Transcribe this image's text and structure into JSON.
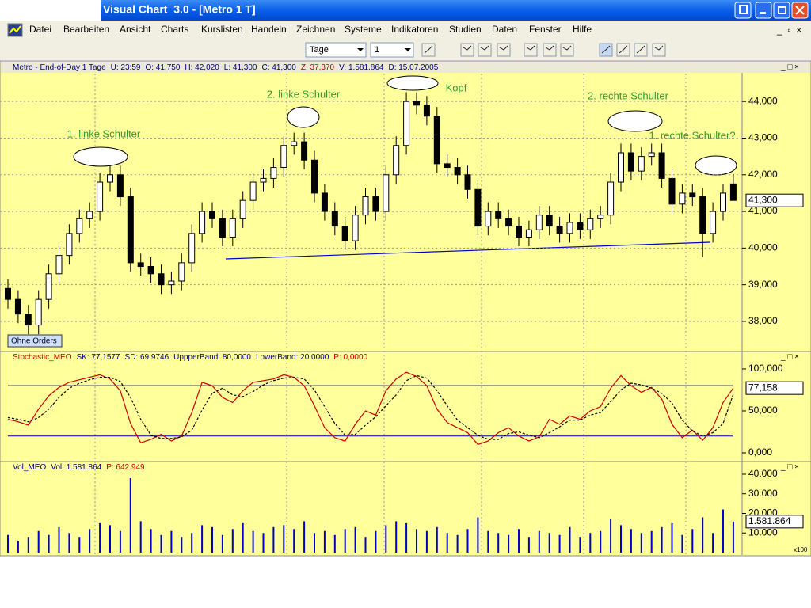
{
  "window": {
    "title": "Visual Chart  3.0 - [Metro 1 T]"
  },
  "menu": [
    "Datei",
    "Bearbeiten",
    "Ansicht",
    "Charts",
    "Kurslisten",
    "Handeln",
    "Zeichnen",
    "Systeme",
    "Indikatoren",
    "Studien",
    "Daten",
    "Fenster",
    "Hilfe"
  ],
  "toolbar": {
    "period": "Tage",
    "count": "1"
  },
  "chart_data": [
    {
      "type": "candlestick",
      "header": [
        {
          "text": "Metro - End-of-Day 1 Tage",
          "color": "#000080"
        },
        {
          "text": "U: 23:59",
          "color": "#000080"
        },
        {
          "text": "O: 41,750",
          "color": "#000080"
        },
        {
          "text": "H: 42,020",
          "color": "#000080"
        },
        {
          "text": "L: 41,300",
          "color": "#000080"
        },
        {
          "text": "C: 41,300",
          "color": "#000080"
        },
        {
          "text": "Z: 37,370",
          "color": "#cc0000"
        },
        {
          "text": "V: 1.581.864",
          "color": "#000080"
        },
        {
          "text": "D: 15.07.2005",
          "color": "#000080"
        }
      ],
      "annotations": [
        "1. linke Schulter",
        "2. linke Schulter",
        "Kopf",
        "2. rechte Schulter",
        "1. rechte Schulter?"
      ],
      "button": "Ohne Orders",
      "last_label": "41,300",
      "ylim": [
        37.2,
        44.76
      ],
      "yticks": [
        {
          "value": 38,
          "label": "38,000"
        },
        {
          "value": 39,
          "label": "39,000"
        },
        {
          "value": 40,
          "label": "40,000"
        },
        {
          "value": 41,
          "label": "41,000"
        },
        {
          "value": 42,
          "label": "42,000"
        },
        {
          "value": 43,
          "label": "43,000"
        },
        {
          "value": 44,
          "label": "44,000"
        }
      ],
      "grid": true,
      "open": [
        38.9,
        38.6,
        38.2,
        37.9,
        38.6,
        39.3,
        39.8,
        40.4,
        40.8,
        41.0,
        41.8,
        42.0,
        41.4,
        39.6,
        39.5,
        39.3,
        39.0,
        39.1,
        39.6,
        40.4,
        41.0,
        40.8,
        40.3,
        40.8,
        41.3,
        41.8,
        41.9,
        42.2,
        42.8,
        42.9,
        42.4,
        41.5,
        41.0,
        40.6,
        40.2,
        40.9,
        41.4,
        41.0,
        42.0,
        42.8,
        44.0,
        43.9,
        43.6,
        42.3,
        42.2,
        42.0,
        41.6,
        40.6,
        41.0,
        40.8,
        40.6,
        40.3,
        40.5,
        40.9,
        40.6,
        40.4,
        40.7,
        40.5,
        40.8,
        40.9,
        41.8,
        42.6,
        42.1,
        42.5,
        42.6,
        41.9,
        41.2,
        41.5,
        41.4,
        40.4,
        41.0,
        41.75
      ],
      "high": [
        39.15,
        38.85,
        38.45,
        38.85,
        39.55,
        40.05,
        40.65,
        41.05,
        41.25,
        42.05,
        42.25,
        42.25,
        41.65,
        39.85,
        39.75,
        39.55,
        39.35,
        39.85,
        40.65,
        41.25,
        41.25,
        41.05,
        41.05,
        41.55,
        42.05,
        42.15,
        42.45,
        43.05,
        43.15,
        43.15,
        42.65,
        41.75,
        41.25,
        40.85,
        41.15,
        41.65,
        41.65,
        42.25,
        43.05,
        44.25,
        44.25,
        44.15,
        43.85,
        42.55,
        42.45,
        42.25,
        41.85,
        41.25,
        41.25,
        41.05,
        40.85,
        40.75,
        41.15,
        41.15,
        40.85,
        40.95,
        40.95,
        41.05,
        41.15,
        42.05,
        42.85,
        42.85,
        42.75,
        42.85,
        42.85,
        42.15,
        41.75,
        41.75,
        41.65,
        41.25,
        41.75,
        42.02
      ],
      "low": [
        38.35,
        37.95,
        37.65,
        37.65,
        38.35,
        39.05,
        39.55,
        40.15,
        40.55,
        40.75,
        41.55,
        41.15,
        39.35,
        39.25,
        39.05,
        38.75,
        38.75,
        38.85,
        39.35,
        40.15,
        40.55,
        40.05,
        40.05,
        40.55,
        41.05,
        41.55,
        41.65,
        41.95,
        42.55,
        42.15,
        41.25,
        40.75,
        40.35,
        39.95,
        39.95,
        40.65,
        40.75,
        40.75,
        41.75,
        42.55,
        43.65,
        43.35,
        42.05,
        41.95,
        41.75,
        41.35,
        40.35,
        40.35,
        40.55,
        40.35,
        40.05,
        40.05,
        40.25,
        40.35,
        40.15,
        40.15,
        40.25,
        40.25,
        40.55,
        40.65,
        41.55,
        41.85,
        41.85,
        42.25,
        41.65,
        40.95,
        40.95,
        41.15,
        39.75,
        40.15,
        40.75,
        41.3
      ],
      "close": [
        38.6,
        38.2,
        37.9,
        38.6,
        39.3,
        39.8,
        40.4,
        40.8,
        41.0,
        41.8,
        42.0,
        41.4,
        39.6,
        39.5,
        39.3,
        39.0,
        39.1,
        39.6,
        40.4,
        41.0,
        40.8,
        40.3,
        40.8,
        41.3,
        41.8,
        41.9,
        42.2,
        42.8,
        42.9,
        42.4,
        41.5,
        41.0,
        40.6,
        40.2,
        40.9,
        41.4,
        41.0,
        42.0,
        42.8,
        44.0,
        43.9,
        43.6,
        42.3,
        42.2,
        42.0,
        41.6,
        40.6,
        41.0,
        40.8,
        40.6,
        40.3,
        40.5,
        40.9,
        40.6,
        40.4,
        40.7,
        40.5,
        40.8,
        40.9,
        41.8,
        42.6,
        42.1,
        42.5,
        42.6,
        41.9,
        41.2,
        41.5,
        41.4,
        40.4,
        41.0,
        41.5,
        41.3
      ]
    },
    {
      "type": "line",
      "header": [
        {
          "text": "Stochastic_MEO",
          "color": "#cc0000"
        },
        {
          "text": "SK: 77,1577",
          "color": "#000080"
        },
        {
          "text": "SD: 69,9746",
          "color": "#000080"
        },
        {
          "text": "UppperBand: 80,0000",
          "color": "#000080"
        },
        {
          "text": "LowerBand: 20,0000",
          "color": "#000080"
        },
        {
          "text": "P: 0,0000",
          "color": "#cc0000"
        }
      ],
      "last_label": "77,158",
      "ylim": [
        -10.4,
        107.5
      ],
      "yticks": [
        {
          "value": 0,
          "label": "0,000"
        },
        {
          "value": 50,
          "label": "50,000"
        },
        {
          "value": 100,
          "label": "100,000"
        }
      ],
      "bands": [
        80,
        20
      ],
      "band_color": "#0000aa",
      "series": [
        {
          "name": "SK",
          "color": "#cc0000",
          "dashed": false,
          "values": [
            40,
            37,
            33,
            52,
            68,
            78,
            84,
            87,
            90,
            93,
            88,
            74,
            35,
            12,
            16,
            22,
            14,
            20,
            48,
            84,
            80,
            66,
            60,
            74,
            84,
            86,
            88,
            93,
            90,
            80,
            56,
            30,
            18,
            14,
            34,
            50,
            45,
            74,
            88,
            96,
            91,
            80,
            52,
            36,
            30,
            24,
            10,
            14,
            24,
            30,
            20,
            14,
            19,
            40,
            34,
            44,
            40,
            50,
            55,
            77,
            92,
            80,
            72,
            78,
            64,
            34,
            18,
            27,
            15,
            30,
            60,
            77.1577
          ]
        },
        {
          "name": "SD",
          "color": "#000000",
          "dashed": true,
          "values": [
            42,
            40,
            37,
            42,
            52,
            66,
            77,
            83,
            87,
            90,
            90,
            85,
            66,
            40,
            21,
            17,
            17,
            19,
            27,
            51,
            71,
            77,
            69,
            67,
            73,
            81,
            86,
            89,
            90,
            88,
            75,
            55,
            35,
            21,
            22,
            33,
            43,
            56,
            69,
            86,
            92,
            89,
            74,
            56,
            39,
            30,
            21,
            16,
            16,
            23,
            25,
            21,
            18,
            24,
            31,
            39,
            39,
            45,
            48,
            61,
            75,
            83,
            81,
            77,
            71,
            59,
            39,
            26,
            20,
            24,
            35,
            69.9746
          ]
        }
      ]
    },
    {
      "type": "bar",
      "header": [
        {
          "text": "Vol_MEO",
          "color": "#000080"
        },
        {
          "text": "Vol: 1.581.864",
          "color": "#000080"
        },
        {
          "text": "P: 642.949",
          "color": "#cc0000"
        }
      ],
      "last_label": "1.581.864",
      "unit_label": "x100",
      "color": "#0000cc",
      "ylim": [
        0,
        40800
      ],
      "yticks": [
        {
          "value": 10000,
          "label": "10.000"
        },
        {
          "value": 20000,
          "label": "20.000"
        },
        {
          "value": 30000,
          "label": "30.000"
        },
        {
          "value": 40000,
          "label": "40.000"
        }
      ],
      "values": [
        9000,
        6000,
        8000,
        11000,
        9000,
        13000,
        10000,
        8000,
        12000,
        15000,
        14000,
        11000,
        38000,
        16000,
        12000,
        9000,
        11000,
        8000,
        10000,
        14000,
        13000,
        9000,
        12000,
        15000,
        11000,
        10000,
        13000,
        14000,
        12000,
        16000,
        10000,
        11000,
        9000,
        12000,
        13000,
        8000,
        11000,
        14000,
        16000,
        15000,
        12000,
        11000,
        13000,
        10000,
        9000,
        12000,
        18000,
        11000,
        10000,
        9000,
        12000,
        8000,
        11000,
        10000,
        9000,
        13000,
        8000,
        10000,
        11000,
        17000,
        14000,
        12000,
        10000,
        11000,
        13000,
        15000,
        9000,
        12000,
        18000,
        10000,
        22000,
        15819
      ]
    }
  ]
}
